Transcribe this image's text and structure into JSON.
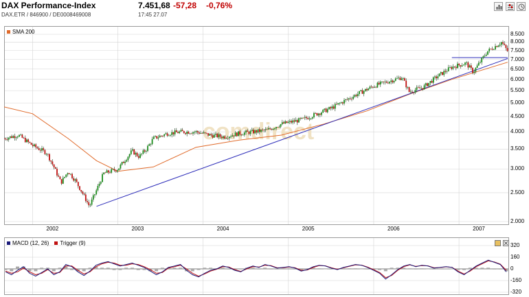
{
  "header": {
    "title": "DAX Performance-Index",
    "price": "7.451,68",
    "change": "-57,28",
    "change_pct": "-0,76%",
    "subtitle": "DAX.ETR  /  846900  /  DE0008469008",
    "time": "17:45   27.07"
  },
  "toolbar": {
    "icons": [
      "bar-chart-icon",
      "settings-icon",
      "print-icon",
      "info-icon"
    ]
  },
  "colors": {
    "price": "#1a8c1a",
    "price_down": "#c01010",
    "sma": "#e06a2a",
    "trendline": "#2a2ab8",
    "macd": "#1a1a7a",
    "trigger": "#c01010",
    "histogram": "#a8a8a8",
    "grid": "#d4d4d4"
  },
  "chart": {
    "legend": {
      "sma": "SMA 200"
    },
    "y_ticks": [
      "8.500",
      "8.000",
      "7.500",
      "7.000",
      "6.500",
      "6.000",
      "5.500",
      "5.000",
      "4.500",
      "4.000",
      "3.500",
      "3.000",
      "2.500",
      "2.000"
    ],
    "x_ticks": [
      "2002",
      "2003",
      "2004",
      "2005",
      "2006",
      "2007"
    ]
  },
  "macd": {
    "legend_macd": "MACD (12, 26)",
    "legend_trigger": "Trigger (9)",
    "y_ticks": [
      "320",
      "160",
      "0",
      "-160",
      "-320"
    ]
  },
  "chart_data": [
    {
      "type": "line",
      "title": "DAX Performance-Index",
      "y_scale": "log",
      "ylim": [
        2000,
        8500
      ],
      "xlim": [
        "2001-09",
        "2007-07-27"
      ],
      "series": [
        {
          "name": "DAX",
          "x": [
            "2001-09",
            "2001-11",
            "2002-01",
            "2002-03",
            "2002-04",
            "2002-05",
            "2002-06",
            "2002-07",
            "2002-08",
            "2002-09",
            "2002-10",
            "2002-11",
            "2002-12",
            "2003-01",
            "2003-03",
            "2003-04",
            "2003-05",
            "2003-06",
            "2003-08",
            "2003-10",
            "2003-12",
            "2004-02",
            "2004-04",
            "2004-06",
            "2004-08",
            "2004-10",
            "2004-12",
            "2005-03",
            "2005-05",
            "2005-07",
            "2005-09",
            "2005-11",
            "2006-01",
            "2006-03",
            "2006-05",
            "2006-06",
            "2006-08",
            "2006-10",
            "2006-12",
            "2007-02",
            "2007-03",
            "2007-05",
            "2007-07",
            "2007-07-27"
          ],
          "values": [
            3800,
            3900,
            3600,
            3400,
            3050,
            2700,
            2950,
            2750,
            2500,
            2250,
            2550,
            2900,
            2950,
            3000,
            3450,
            3300,
            3500,
            3800,
            3950,
            4000,
            4000,
            3900,
            3850,
            3950,
            4000,
            4050,
            4250,
            4400,
            4600,
            4800,
            5100,
            5400,
            5700,
            5900,
            6100,
            5450,
            5650,
            6150,
            6600,
            6800,
            6350,
            7450,
            8000,
            7450
          ]
        },
        {
          "name": "SMA 200",
          "x": [
            "2001-09",
            "2002-01",
            "2002-06",
            "2002-10",
            "2003-01",
            "2003-06",
            "2003-12",
            "2004-06",
            "2004-12",
            "2005-06",
            "2005-12",
            "2006-06",
            "2006-12",
            "2007-07-27"
          ],
          "values": [
            4850,
            4600,
            3800,
            3200,
            2950,
            3050,
            3550,
            3750,
            3900,
            4250,
            4700,
            5350,
            6000,
            6850
          ]
        },
        {
          "name": "Trendline",
          "x": [
            "2002-10",
            "2007-07-27"
          ],
          "values": [
            2250,
            7050
          ]
        }
      ]
    },
    {
      "type": "line",
      "title": "MACD (12, 26)",
      "ylim": [
        -320,
        320
      ],
      "series": [
        {
          "name": "MACD (12, 26)",
          "values": [
            -40,
            -80,
            -20,
            30,
            -60,
            -100,
            -50,
            0,
            -80,
            -40,
            60,
            30,
            -40,
            -90,
            -30,
            50,
            80,
            100,
            70,
            40,
            60,
            80,
            50,
            20,
            -30,
            -80,
            -40,
            20,
            40,
            60,
            -20,
            -80,
            -110,
            -60,
            -20,
            0,
            40,
            20,
            -20,
            -40,
            10,
            40,
            20,
            60,
            40,
            10,
            20,
            30,
            10,
            -30,
            -10,
            30,
            50,
            40,
            10,
            -10,
            20,
            40,
            60,
            50,
            20,
            -20,
            -60,
            -140,
            -80,
            -10,
            40,
            60,
            30,
            50,
            40,
            10,
            20,
            30,
            20,
            -40,
            -80,
            -20,
            40,
            80,
            120,
            90,
            60,
            -40
          ]
        },
        {
          "name": "Trigger (9)",
          "values": [
            -30,
            -60,
            -40,
            10,
            -40,
            -80,
            -60,
            -10,
            -60,
            -50,
            40,
            40,
            -20,
            -70,
            -40,
            30,
            70,
            90,
            80,
            50,
            50,
            70,
            60,
            30,
            -10,
            -60,
            -50,
            10,
            30,
            50,
            0,
            -60,
            -100,
            -70,
            -30,
            -5,
            30,
            25,
            -10,
            -35,
            0,
            30,
            25,
            50,
            45,
            15,
            15,
            25,
            15,
            -20,
            -15,
            20,
            45,
            42,
            15,
            -5,
            15,
            35,
            55,
            52,
            25,
            -10,
            -50,
            -120,
            -90,
            -20,
            30,
            55,
            35,
            45,
            42,
            15,
            18,
            28,
            22,
            -30,
            -70,
            -30,
            30,
            70,
            110,
            95,
            65,
            -20
          ]
        }
      ]
    }
  ]
}
